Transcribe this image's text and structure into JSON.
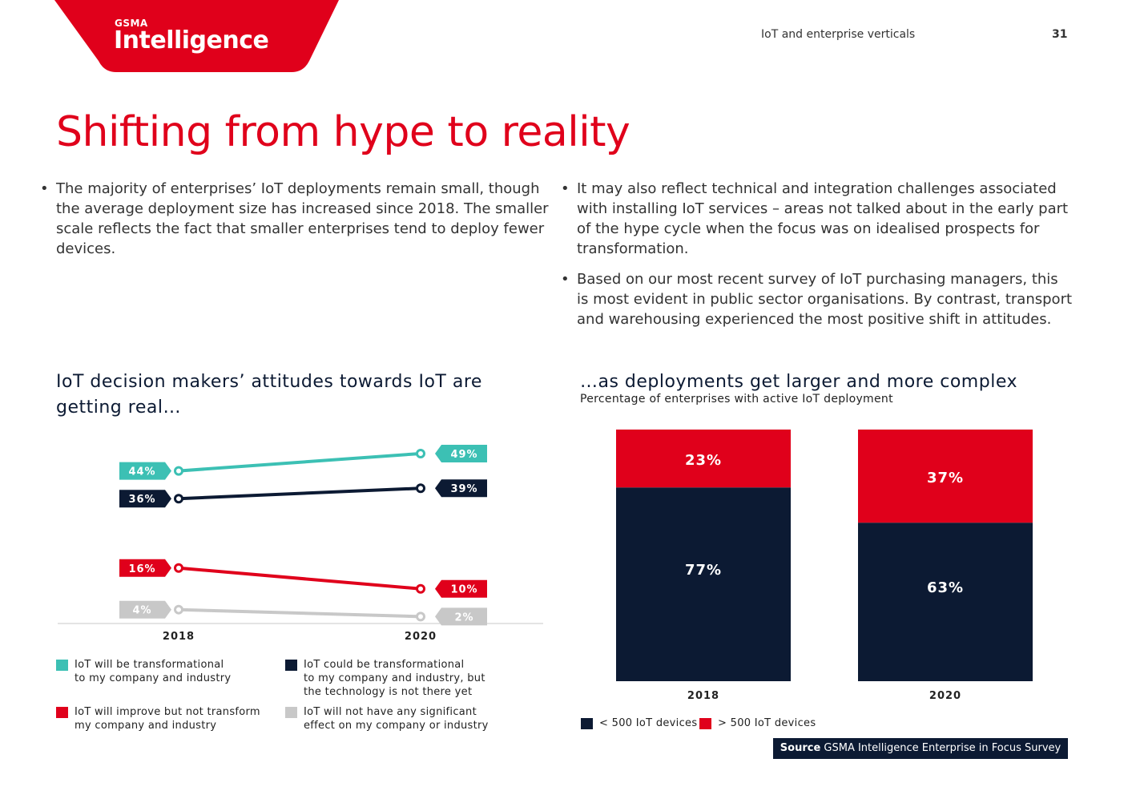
{
  "header": {
    "logo_small": "GSMA",
    "logo_big": "Intelligence",
    "section": "IoT and enterprise verticals",
    "page_number": "31",
    "brand_red": "#e0001b",
    "brand_navy": "#0c1a33"
  },
  "title": "Shifting from hype to reality",
  "bullets": [
    "The majority of enterprises’ IoT deployments remain small, though the average deployment size has increased since 2018. The smaller scale reflects the fact that smaller enterprises tend to deploy fewer devices.",
    "It may also reflect technical and integration challenges associated with installing IoT services – areas not talked about in the early part of the hype cycle when the focus was on idealised prospects for transformation.",
    "Based on our most recent survey of IoT purchasing managers, this is most evident in public sector organisations. By contrast, transport and warehousing experienced the most positive shift in attitudes."
  ],
  "chart_data": [
    {
      "type": "line",
      "title": "IoT decision makers’ attitudes towards IoT are getting real…",
      "x": [
        "2018",
        "2020"
      ],
      "ylim": [
        0,
        55
      ],
      "series": [
        {
          "name": "IoT will be transformational to my company and industry",
          "values": [
            44,
            49
          ],
          "labels": [
            "44%",
            "49%"
          ],
          "color": "#3cc0b4"
        },
        {
          "name": "IoT could be transformational to my company and industry, but the technology is not there yet",
          "values": [
            36,
            39
          ],
          "labels": [
            "36%",
            "39%"
          ],
          "color": "#0c1a33"
        },
        {
          "name": "IoT will improve but not transform my company and industry",
          "values": [
            16,
            10
          ],
          "labels": [
            "16%",
            "10%"
          ],
          "color": "#e0001b"
        },
        {
          "name": "IoT will not have any significant effect on my company or industry",
          "values": [
            4,
            2
          ],
          "labels": [
            "4%",
            "2%"
          ],
          "color": "#c8c8c8"
        }
      ],
      "legend": [
        {
          "line1": "IoT will be transformational",
          "line2": "to my company and industry",
          "line3": ""
        },
        {
          "line1": "IoT could be transformational",
          "line2": "to my company and industry, but",
          "line3": "the technology is not there yet"
        },
        {
          "line1": "IoT will improve but not transform",
          "line2": "my company and industry",
          "line3": ""
        },
        {
          "line1": "IoT will not have any significant",
          "line2": "effect on my company or industry",
          "line3": ""
        }
      ]
    },
    {
      "type": "bar",
      "stacked": true,
      "title": "…as deployments get larger and more complex",
      "subtitle": "Percentage of enterprises with active IoT deployment",
      "categories": [
        "2018",
        "2020"
      ],
      "ylim": [
        0,
        100
      ],
      "series": [
        {
          "name": "< 500 IoT devices",
          "values": [
            77,
            63
          ],
          "labels": [
            "77%",
            "63%"
          ],
          "color": "#0c1a33"
        },
        {
          "name": "> 500 IoT devices",
          "values": [
            23,
            37
          ],
          "labels": [
            "23%",
            "37%"
          ],
          "color": "#e0001b"
        }
      ]
    }
  ],
  "source": {
    "label": "Source",
    "text": "GSMA Intelligence Enterprise in Focus Survey"
  }
}
